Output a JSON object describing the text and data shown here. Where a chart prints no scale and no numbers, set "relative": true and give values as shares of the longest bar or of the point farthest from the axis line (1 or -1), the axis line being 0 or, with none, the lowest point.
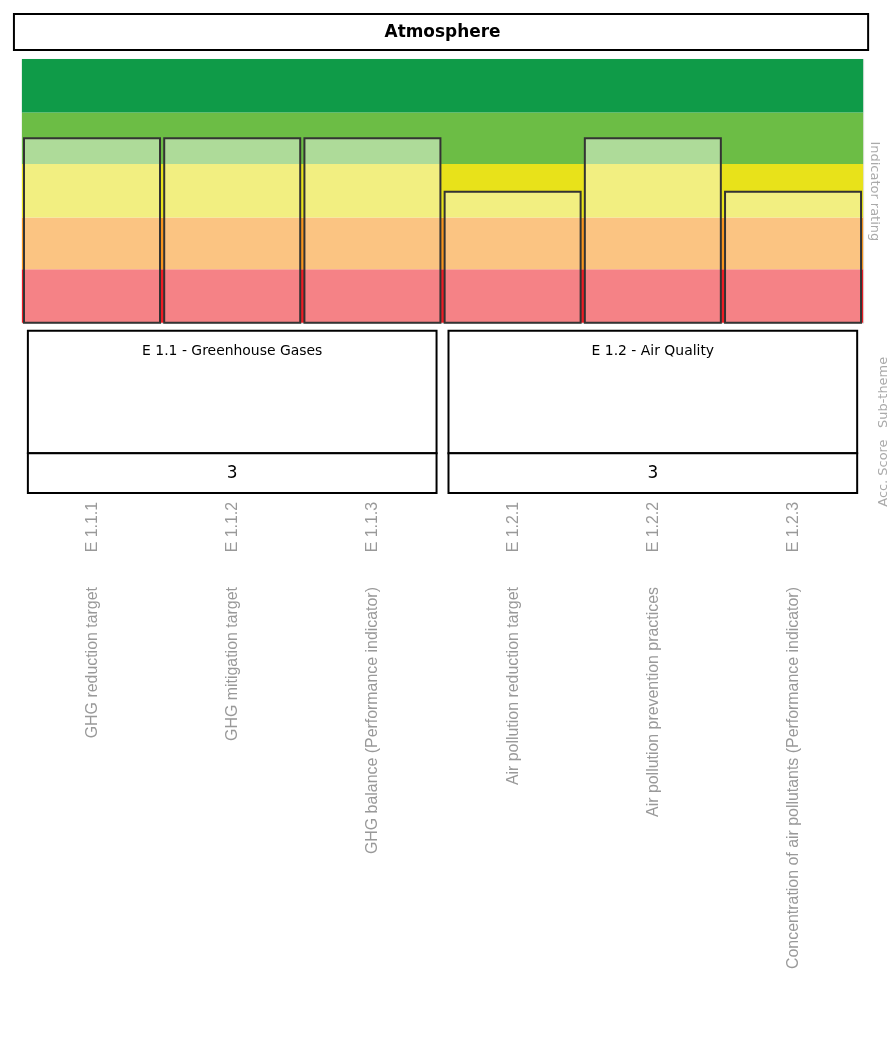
{
  "chart_data": {
    "type": "bar",
    "title": "Atmosphere",
    "ylabel": "Indicator rating",
    "relative": true,
    "categories": [
      "GHG reduction target",
      "GHG mitigation target",
      "GHG balance (Performance indicator)",
      "Air pollution reduction target",
      "Air pollution prevention practices",
      "Concentration of air pollutants (Performance indicator)"
    ],
    "values": [
      1,
      1,
      1,
      0.71,
      1,
      0.71
    ],
    "bands": [
      {
        "axis": "y",
        "from": 0,
        "to": 0.29,
        "color": "#ed1c24"
      },
      {
        "axis": "y",
        "from": 0.29,
        "to": 0.57,
        "color": "#f7941d"
      },
      {
        "axis": "y",
        "from": 0.57,
        "to": 0.86,
        "color": "#e8e21a"
      },
      {
        "axis": "y",
        "from": 0.86,
        "to": 1.14,
        "color": "#6cbd45"
      },
      {
        "axis": "y",
        "from": 1.14,
        "to": 1.43,
        "color": "#0f9b48"
      }
    ],
    "annotations": [
      "E 1.1 - Greenhouse Gases",
      "3",
      "E 1.2 - Air Quality",
      "3",
      "Sub-theme",
      "Acc. Score",
      "E 1.1.1",
      "E 1.1.2",
      "E 1.1.3",
      "E 1.2.1",
      "E 1.2.2",
      "E 1.2.3"
    ],
    "grid": false
  }
}
